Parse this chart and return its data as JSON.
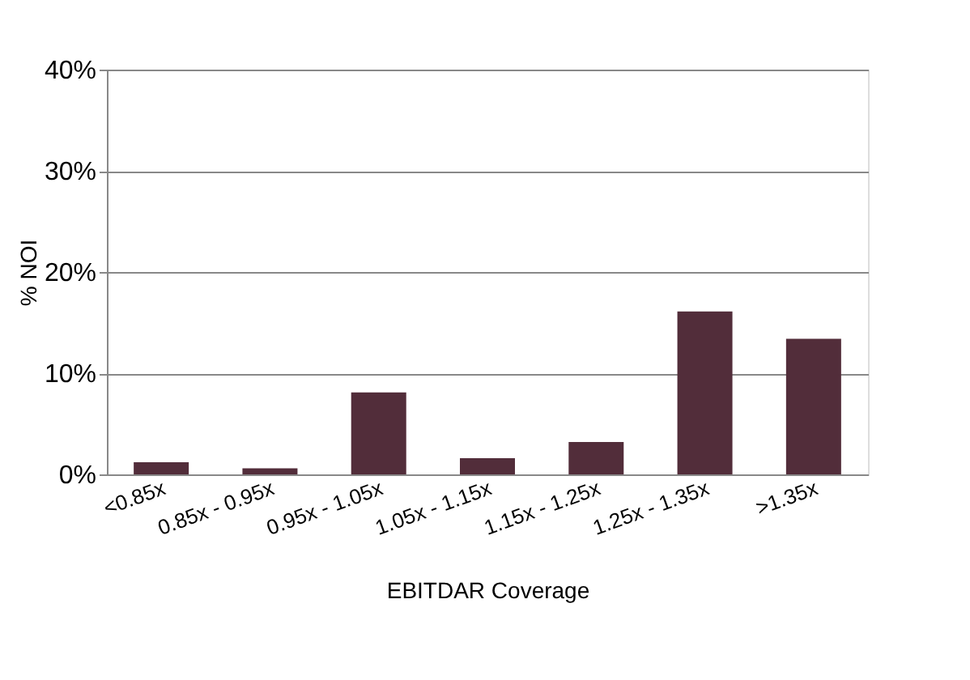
{
  "chart_data": {
    "type": "bar",
    "xlabel": "EBITDAR Coverage",
    "ylabel": "% NOI",
    "categories": [
      "<0.85x",
      "0.85x - 0.95x",
      "0.95x - 1.05x",
      "1.05x - 1.15x",
      "1.15x - 1.25x",
      "1.25x - 1.35x",
      ">1.35x"
    ],
    "values": [
      1.2,
      0.6,
      8.1,
      1.6,
      3.2,
      16.1,
      13.4
    ],
    "color": "#522d3a",
    "ylim": [
      0,
      40
    ],
    "yticks": [
      {
        "value": 0,
        "label": "0%"
      },
      {
        "value": 10,
        "label": "10%"
      },
      {
        "value": 20,
        "label": "20%"
      },
      {
        "value": 30,
        "label": "30%"
      },
      {
        "value": 40,
        "label": "40%"
      }
    ],
    "grid": "y"
  }
}
